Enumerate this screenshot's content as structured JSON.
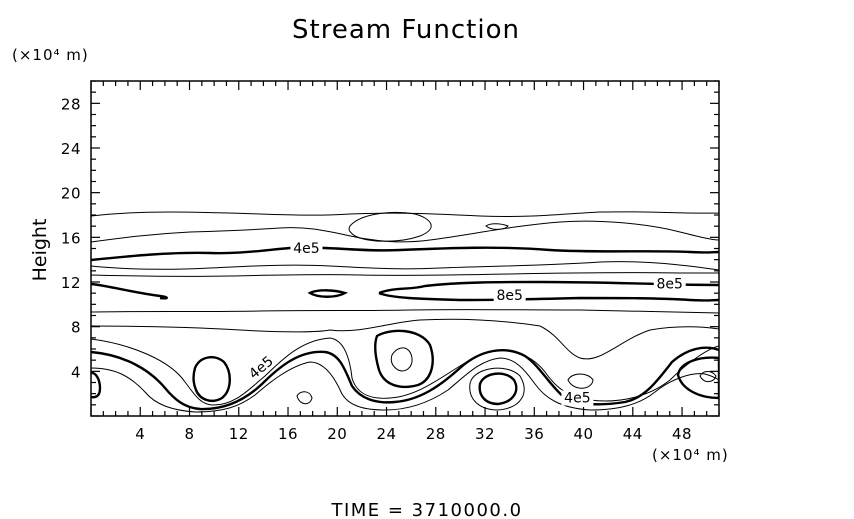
{
  "chart_data": {
    "type": "contour",
    "title": "Stream Function",
    "ylabel": "Height",
    "y_unit_label": "(×10⁴ m)",
    "x_unit_label": "(×10⁴ m)",
    "xlim": [
      0,
      51
    ],
    "ylim": [
      0,
      30
    ],
    "x_ticks": [
      4,
      8,
      12,
      16,
      20,
      24,
      28,
      32,
      36,
      40,
      44,
      48
    ],
    "y_ticks": [
      4,
      8,
      12,
      16,
      20,
      24,
      28
    ],
    "contour_labels": [
      {
        "text": "4e5",
        "x": 17.5,
        "y": 14.7
      },
      {
        "text": "8e5",
        "x": 47,
        "y": 11.5
      },
      {
        "text": "8e5",
        "x": 34,
        "y": 10.5
      },
      {
        "text": "4e5",
        "x": 14,
        "y": 4.1
      },
      {
        "text": "4e5",
        "x": 39.5,
        "y": 1.3
      }
    ],
    "footer": "TIME  =  3710000.0"
  }
}
